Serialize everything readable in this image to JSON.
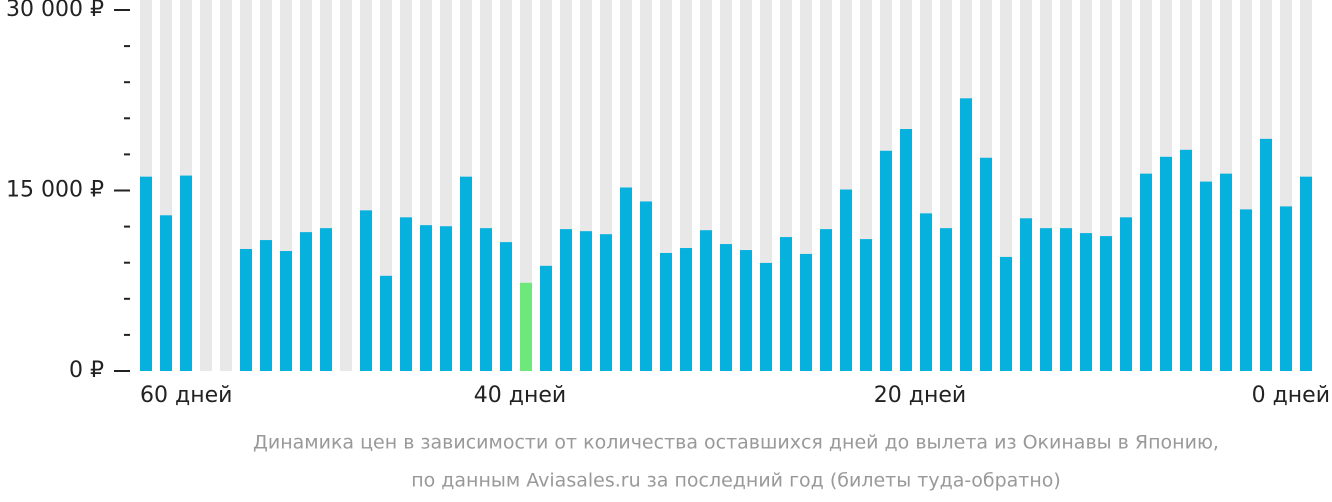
{
  "chart_data": {
    "type": "bar",
    "categories": [
      "60 дней",
      null,
      null,
      null,
      null,
      null,
      null,
      null,
      null,
      null,
      null,
      null,
      null,
      null,
      null,
      null,
      null,
      null,
      null,
      "40 дней",
      null,
      null,
      null,
      null,
      null,
      null,
      null,
      null,
      null,
      null,
      null,
      null,
      null,
      null,
      null,
      null,
      null,
      null,
      null,
      "20 дней",
      null,
      null,
      null,
      null,
      null,
      null,
      null,
      null,
      null,
      null,
      null,
      null,
      null,
      null,
      null,
      null,
      null,
      null,
      "0 дней"
    ],
    "values": [
      16150,
      12940,
      16240,
      null,
      null,
      10140,
      10880,
      9970,
      11540,
      11870,
      null,
      13350,
      7910,
      12770,
      12120,
      12030,
      16150,
      11870,
      10710,
      7330,
      8740,
      11790,
      11620,
      11370,
      15250,
      14090,
      9810,
      10220,
      11700,
      10550,
      10050,
      8980,
      11130,
      9730,
      11790,
      15080,
      10960,
      18300,
      20110,
      13100,
      11870,
      22660,
      17720,
      9480,
      12690,
      11870,
      11870,
      11460,
      11210,
      12770,
      16400,
      17800,
      18380,
      15740,
      16400,
      13430,
      19290,
      13680,
      16150
    ],
    "color": "#07b1dd",
    "highlight_color": "#6ee87a",
    "highlight_index": 19,
    "stripe_color": "#e8e8e8",
    "ylim": [
      0,
      30000
    ],
    "yticks": [
      {
        "value": 0,
        "label": "0 ₽"
      },
      {
        "value": 15000,
        "label": "15 000 ₽"
      },
      {
        "value": 30000,
        "label": "30 000 ₽"
      }
    ],
    "yminor": [
      3000,
      6000,
      9000,
      12000,
      18000,
      21000,
      24000,
      27000
    ],
    "caption": [
      "Динамика цен в зависимости от количества оставшихся дней до вылета из Окинавы в Японию,",
      "по данным Aviasales.ru за последний год (билеты туда-обратно)"
    ]
  }
}
